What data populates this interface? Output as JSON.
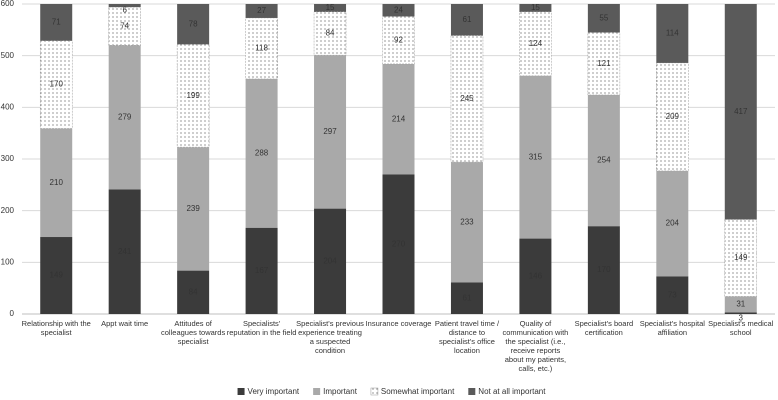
{
  "chart_data": {
    "type": "stacked-bar",
    "categories": [
      "Relationship with the specialist",
      "Appt wait time",
      "Attitudes of colleagues towards specialist",
      "Specialists' reputation in the field",
      "Specialist's previous experience treating a suspected condition",
      "Insurance coverage",
      "Patient travel time / distance to specialist's office location",
      "Quality of communication with the specialist (i.e., receive reports about my patients, calls, etc.)",
      "Specialist's board certification",
      "Specialist's hospital affiliation",
      "Specialist's medical school"
    ],
    "series": [
      {
        "name": "Very important",
        "color": "#3b3b3b",
        "values": [
          149,
          241,
          84,
          167,
          204,
          270,
          61,
          146,
          170,
          73,
          3
        ]
      },
      {
        "name": "Important",
        "color": "#a9a9a9",
        "values": [
          210,
          279,
          239,
          288,
          297,
          214,
          233,
          315,
          254,
          204,
          31
        ]
      },
      {
        "name": "Somewhat important",
        "color": "#ffffff",
        "pattern": "dots",
        "values": [
          170,
          74,
          199,
          118,
          84,
          92,
          245,
          124,
          121,
          209,
          149
        ]
      },
      {
        "name": "Not at all important",
        "color": "#5a5a5a",
        "values": [
          71,
          6,
          78,
          27,
          15,
          24,
          61,
          15,
          55,
          114,
          417
        ]
      }
    ],
    "ylim": [
      0,
      600
    ],
    "yticks": [
      0,
      100,
      200,
      300,
      400,
      500,
      600
    ],
    "grid": true,
    "legend": "bottom"
  }
}
